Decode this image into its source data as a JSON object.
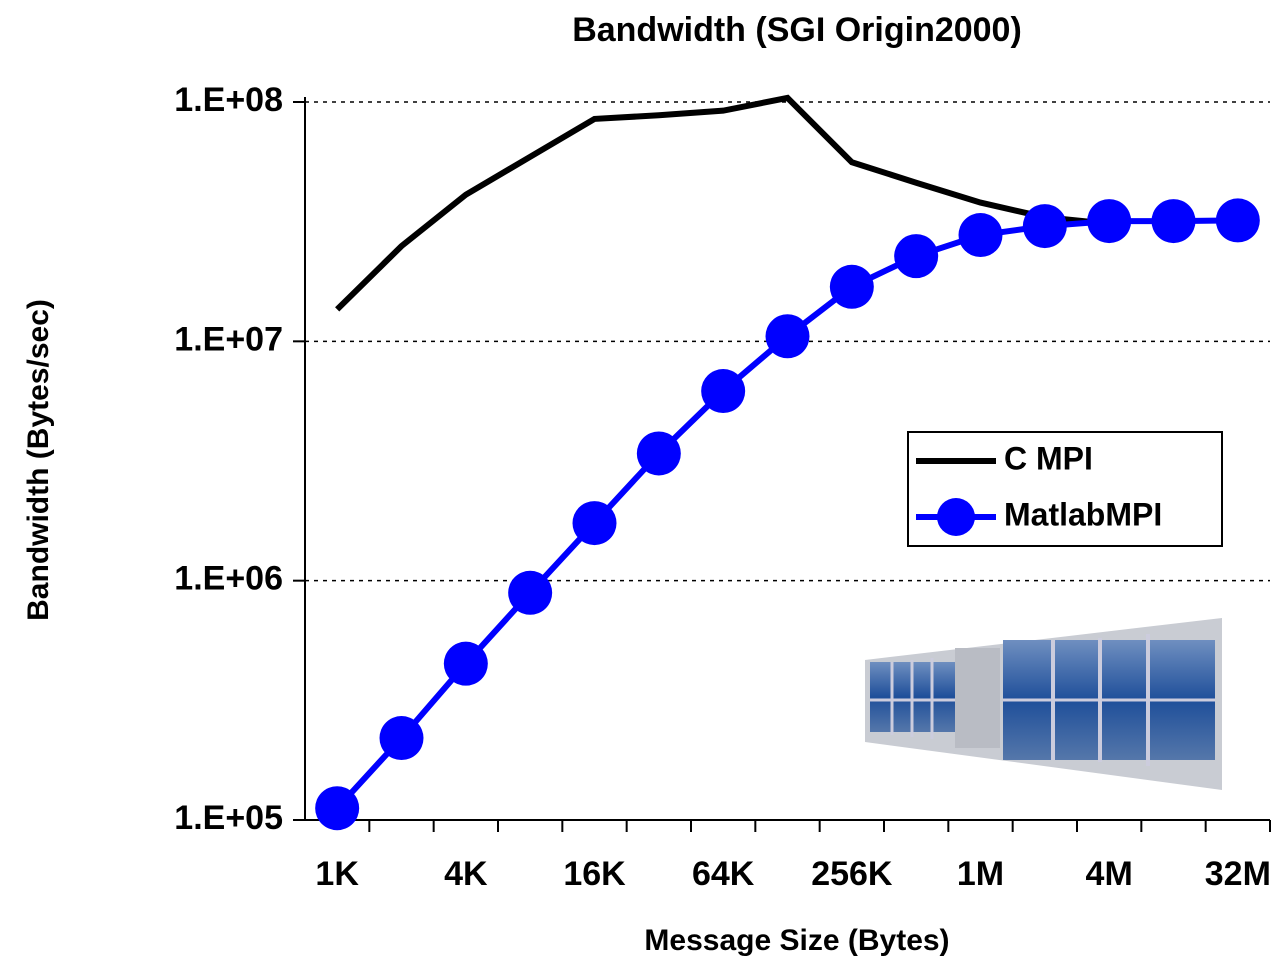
{
  "chart_data": {
    "type": "line",
    "title": "Bandwidth (SGI Origin2000)",
    "x_label": "Message Size (Bytes)",
    "y_label": "Bandwidth (Bytes/sec)",
    "categories": [
      "1K",
      null,
      "4K",
      null,
      "16K",
      null,
      "64K",
      null,
      "256K",
      null,
      "1M",
      null,
      "4M",
      null,
      "32M"
    ],
    "ylog": true,
    "ylim": [
      100000,
      100000000
    ],
    "yticks": [
      {
        "value": 100000,
        "label": "1.E+05"
      },
      {
        "value": 1000000,
        "label": "1.E+06"
      },
      {
        "value": 10000000,
        "label": "1.E+07"
      },
      {
        "value": 100000000,
        "label": "1.E+08"
      }
    ],
    "grid": true,
    "legend": "right",
    "series": [
      {
        "name": "C MPI",
        "color": "#000000",
        "marker": false,
        "values": [
          13600000,
          25000000,
          41000000,
          59000000,
          85000000,
          88000000,
          92000000,
          104000000,
          56000000,
          46000000,
          38000000,
          33000000,
          31000000,
          null,
          null
        ]
      },
      {
        "name": "MatlabMPI",
        "color": "#0000ff",
        "marker": true,
        "values": [
          112000,
          220000,
          450000,
          890000,
          1740000,
          3400000,
          6200000,
          10500000,
          16900000,
          22700000,
          27800000,
          30300000,
          31800000,
          31800000,
          32000000
        ]
      }
    ]
  }
}
